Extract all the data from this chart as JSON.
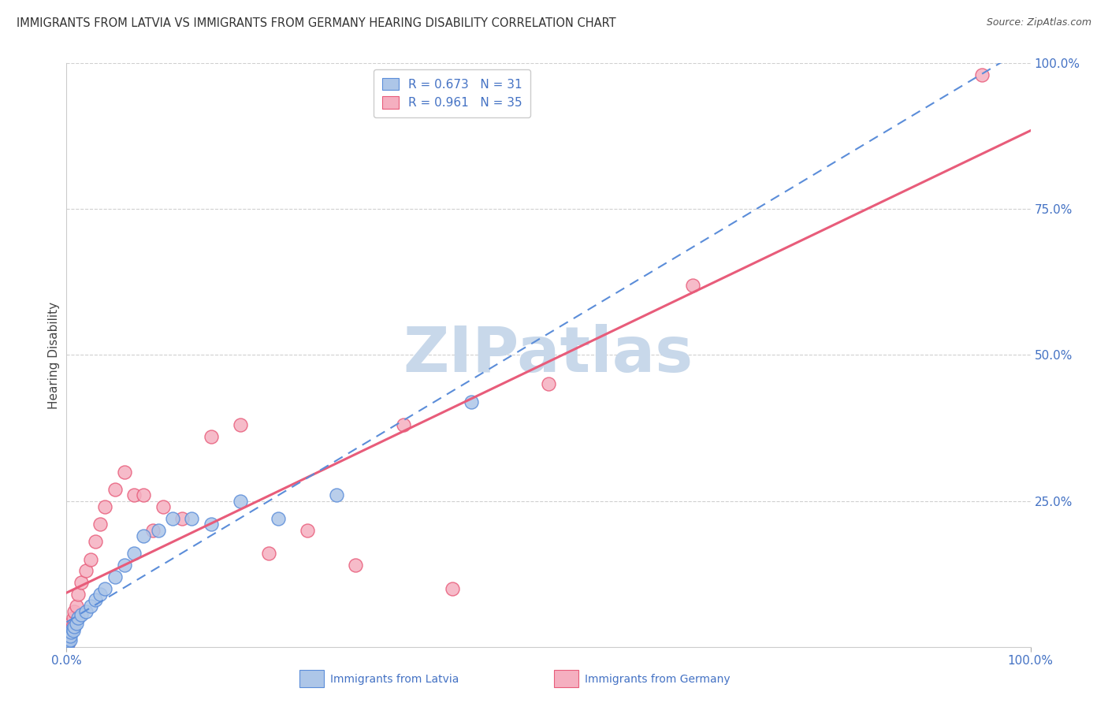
{
  "title": "IMMIGRANTS FROM LATVIA VS IMMIGRANTS FROM GERMANY HEARING DISABILITY CORRELATION CHART",
  "source": "Source: ZipAtlas.com",
  "ylabel": "Hearing Disability",
  "xlim": [
    0,
    100
  ],
  "ylim": [
    0,
    100
  ],
  "legend_r": [
    0.673,
    0.961
  ],
  "legend_n": [
    31,
    35
  ],
  "color_latvia": "#adc6e8",
  "color_germany": "#f5afc0",
  "color_line_latvia": "#5b8dd9",
  "color_line_germany": "#e85c7a",
  "color_axis_text": "#4472c4",
  "watermark_text": "ZIPatlas",
  "watermark_color": "#c8d8ea",
  "legend_labels": [
    "Immigrants from Latvia",
    "Immigrants from Germany"
  ],
  "background_color": "#ffffff",
  "grid_color": "#d0d0d0",
  "latvia_x": [
    0.1,
    0.15,
    0.2,
    0.25,
    0.3,
    0.35,
    0.4,
    0.5,
    0.6,
    0.7,
    0.8,
    1.0,
    1.2,
    1.5,
    2.0,
    2.5,
    3.0,
    3.5,
    4.0,
    5.0,
    6.0,
    7.0,
    8.0,
    9.5,
    11.0,
    13.0,
    15.0,
    18.0,
    22.0,
    28.0,
    42.0
  ],
  "latvia_y": [
    0.5,
    0.8,
    1.0,
    1.5,
    2.0,
    1.2,
    1.8,
    2.5,
    3.0,
    2.8,
    3.5,
    4.0,
    5.0,
    5.5,
    6.0,
    7.0,
    8.0,
    9.0,
    10.0,
    12.0,
    14.0,
    16.0,
    19.0,
    20.0,
    22.0,
    22.0,
    21.0,
    25.0,
    22.0,
    26.0,
    42.0
  ],
  "germany_x": [
    0.1,
    0.15,
    0.2,
    0.25,
    0.3,
    0.4,
    0.5,
    0.6,
    0.7,
    0.8,
    1.0,
    1.2,
    1.5,
    2.0,
    2.5,
    3.0,
    3.5,
    4.0,
    5.0,
    6.0,
    7.0,
    8.0,
    9.0,
    10.0,
    12.0,
    15.0,
    18.0,
    21.0,
    25.0,
    30.0,
    35.0,
    40.0,
    50.0,
    65.0,
    95.0
  ],
  "germany_y": [
    0.5,
    1.0,
    1.5,
    2.0,
    2.5,
    3.0,
    4.0,
    3.5,
    5.0,
    6.0,
    7.0,
    9.0,
    11.0,
    13.0,
    15.0,
    18.0,
    21.0,
    24.0,
    27.0,
    30.0,
    26.0,
    26.0,
    20.0,
    24.0,
    22.0,
    36.0,
    38.0,
    16.0,
    20.0,
    14.0,
    38.0,
    10.0,
    45.0,
    62.0,
    98.0
  ]
}
